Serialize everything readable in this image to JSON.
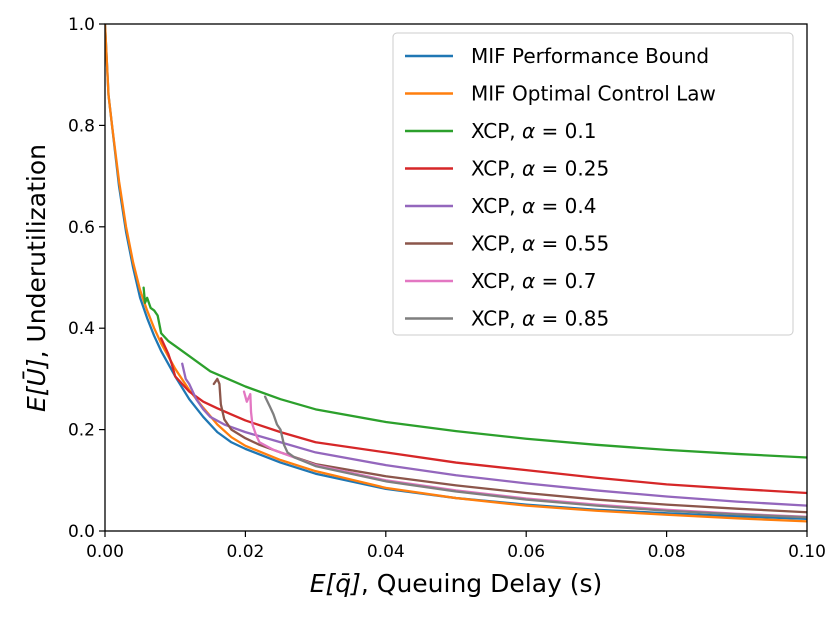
{
  "chart_data": {
    "type": "line",
    "xlabel_italic": "E[q̄]",
    "xlabel_rest": ", Queuing Delay (s)",
    "ylabel_italic": "E[Ū]",
    "ylabel_rest": ", Underutilization",
    "xlim": [
      0.0,
      0.1
    ],
    "ylim": [
      0.0,
      1.0
    ],
    "xticks": [
      0.0,
      0.02,
      0.04,
      0.06,
      0.08,
      0.1
    ],
    "xtick_labels": [
      "0.00",
      "0.02",
      "0.04",
      "0.06",
      "0.08",
      "0.10"
    ],
    "yticks": [
      0.0,
      0.2,
      0.4,
      0.6,
      0.8,
      1.0
    ],
    "ytick_labels": [
      "0.0",
      "0.2",
      "0.4",
      "0.6",
      "0.8",
      "1.0"
    ],
    "grid": false,
    "legend_position": "upper right",
    "series": [
      {
        "name": "MIF Performance Bound",
        "prefix": "MIF Performance Bound",
        "alpha_value": "",
        "color": "#1f77b4",
        "points": [
          [
            0.0,
            1.0
          ],
          [
            0.0005,
            0.86
          ],
          [
            0.001,
            0.8
          ],
          [
            0.002,
            0.68
          ],
          [
            0.003,
            0.59
          ],
          [
            0.004,
            0.52
          ],
          [
            0.005,
            0.46
          ],
          [
            0.006,
            0.42
          ],
          [
            0.007,
            0.385
          ],
          [
            0.008,
            0.355
          ],
          [
            0.009,
            0.33
          ],
          [
            0.01,
            0.305
          ],
          [
            0.012,
            0.26
          ],
          [
            0.014,
            0.225
          ],
          [
            0.016,
            0.195
          ],
          [
            0.018,
            0.175
          ],
          [
            0.02,
            0.162
          ],
          [
            0.025,
            0.135
          ],
          [
            0.03,
            0.113
          ],
          [
            0.04,
            0.083
          ],
          [
            0.05,
            0.065
          ],
          [
            0.06,
            0.052
          ],
          [
            0.07,
            0.042
          ],
          [
            0.08,
            0.035
          ],
          [
            0.09,
            0.029
          ],
          [
            0.1,
            0.024
          ]
        ]
      },
      {
        "name": "MIF Optimal Control Law",
        "prefix": "MIF Optimal Control Law",
        "alpha_value": "",
        "color": "#ff7f0e",
        "points": [
          [
            0.0,
            1.0
          ],
          [
            0.0005,
            0.86
          ],
          [
            0.001,
            0.8
          ],
          [
            0.002,
            0.69
          ],
          [
            0.003,
            0.6
          ],
          [
            0.004,
            0.53
          ],
          [
            0.005,
            0.475
          ],
          [
            0.006,
            0.435
          ],
          [
            0.007,
            0.4
          ],
          [
            0.008,
            0.37
          ],
          [
            0.009,
            0.345
          ],
          [
            0.01,
            0.32
          ],
          [
            0.012,
            0.278
          ],
          [
            0.014,
            0.243
          ],
          [
            0.016,
            0.21
          ],
          [
            0.018,
            0.185
          ],
          [
            0.02,
            0.168
          ],
          [
            0.025,
            0.14
          ],
          [
            0.03,
            0.118
          ],
          [
            0.04,
            0.085
          ],
          [
            0.05,
            0.065
          ],
          [
            0.06,
            0.05
          ],
          [
            0.07,
            0.04
          ],
          [
            0.08,
            0.032
          ],
          [
            0.09,
            0.025
          ],
          [
            0.1,
            0.019
          ]
        ]
      },
      {
        "name": "XCP, α = 0.1",
        "prefix": "XCP, ",
        "alpha_value": " = 0.1",
        "color": "#2ca02c",
        "points": [
          [
            0.0055,
            0.48
          ],
          [
            0.0057,
            0.45
          ],
          [
            0.006,
            0.46
          ],
          [
            0.0065,
            0.44
          ],
          [
            0.007,
            0.435
          ],
          [
            0.0075,
            0.425
          ],
          [
            0.008,
            0.39
          ],
          [
            0.009,
            0.375
          ],
          [
            0.01,
            0.365
          ],
          [
            0.012,
            0.345
          ],
          [
            0.015,
            0.315
          ],
          [
            0.02,
            0.285
          ],
          [
            0.025,
            0.26
          ],
          [
            0.03,
            0.24
          ],
          [
            0.04,
            0.215
          ],
          [
            0.05,
            0.197
          ],
          [
            0.06,
            0.182
          ],
          [
            0.07,
            0.17
          ],
          [
            0.08,
            0.16
          ],
          [
            0.09,
            0.152
          ],
          [
            0.1,
            0.145
          ]
        ]
      },
      {
        "name": "XCP, α = 0.25",
        "prefix": "XCP, ",
        "alpha_value": " = 0.25",
        "color": "#d62728",
        "points": [
          [
            0.008,
            0.38
          ],
          [
            0.009,
            0.35
          ],
          [
            0.0095,
            0.33
          ],
          [
            0.01,
            0.305
          ],
          [
            0.011,
            0.29
          ],
          [
            0.012,
            0.275
          ],
          [
            0.014,
            0.255
          ],
          [
            0.016,
            0.242
          ],
          [
            0.018,
            0.23
          ],
          [
            0.02,
            0.218
          ],
          [
            0.025,
            0.195
          ],
          [
            0.03,
            0.175
          ],
          [
            0.04,
            0.155
          ],
          [
            0.05,
            0.135
          ],
          [
            0.06,
            0.12
          ],
          [
            0.07,
            0.105
          ],
          [
            0.08,
            0.092
          ],
          [
            0.09,
            0.083
          ],
          [
            0.1,
            0.075
          ]
        ]
      },
      {
        "name": "XCP, α = 0.4",
        "prefix": "XCP, ",
        "alpha_value": " = 0.4",
        "color": "#9467bd",
        "points": [
          [
            0.011,
            0.33
          ],
          [
            0.0115,
            0.3
          ],
          [
            0.012,
            0.29
          ],
          [
            0.0125,
            0.275
          ],
          [
            0.013,
            0.26
          ],
          [
            0.014,
            0.24
          ],
          [
            0.015,
            0.225
          ],
          [
            0.017,
            0.21
          ],
          [
            0.02,
            0.195
          ],
          [
            0.025,
            0.175
          ],
          [
            0.03,
            0.155
          ],
          [
            0.04,
            0.13
          ],
          [
            0.05,
            0.11
          ],
          [
            0.06,
            0.094
          ],
          [
            0.07,
            0.08
          ],
          [
            0.08,
            0.068
          ],
          [
            0.09,
            0.058
          ],
          [
            0.1,
            0.05
          ]
        ]
      },
      {
        "name": "XCP, α = 0.55",
        "prefix": "XCP, ",
        "alpha_value": " = 0.55",
        "color": "#8c564b",
        "points": [
          [
            0.0155,
            0.29
          ],
          [
            0.016,
            0.3
          ],
          [
            0.0163,
            0.29
          ],
          [
            0.0165,
            0.25
          ],
          [
            0.017,
            0.22
          ],
          [
            0.018,
            0.2
          ],
          [
            0.02,
            0.183
          ],
          [
            0.022,
            0.17
          ],
          [
            0.025,
            0.155
          ],
          [
            0.03,
            0.132
          ],
          [
            0.04,
            0.108
          ],
          [
            0.05,
            0.09
          ],
          [
            0.06,
            0.075
          ],
          [
            0.07,
            0.062
          ],
          [
            0.08,
            0.052
          ],
          [
            0.09,
            0.044
          ],
          [
            0.1,
            0.037
          ]
        ]
      },
      {
        "name": "XCP, α = 0.7",
        "prefix": "XCP, ",
        "alpha_value": " = 0.7",
        "color": "#e377c2",
        "points": [
          [
            0.0198,
            0.275
          ],
          [
            0.0202,
            0.255
          ],
          [
            0.0207,
            0.27
          ],
          [
            0.0208,
            0.235
          ],
          [
            0.021,
            0.21
          ],
          [
            0.0215,
            0.19
          ],
          [
            0.022,
            0.175
          ],
          [
            0.024,
            0.16
          ],
          [
            0.027,
            0.145
          ],
          [
            0.03,
            0.13
          ],
          [
            0.04,
            0.1
          ],
          [
            0.05,
            0.08
          ],
          [
            0.06,
            0.064
          ],
          [
            0.07,
            0.052
          ],
          [
            0.08,
            0.042
          ],
          [
            0.09,
            0.034
          ],
          [
            0.1,
            0.028
          ]
        ]
      },
      {
        "name": "XCP, α = 0.85",
        "prefix": "XCP, ",
        "alpha_value": " = 0.85",
        "color": "#7f7f7f",
        "points": [
          [
            0.0228,
            0.265
          ],
          [
            0.0235,
            0.245
          ],
          [
            0.024,
            0.23
          ],
          [
            0.0245,
            0.21
          ],
          [
            0.025,
            0.2
          ],
          [
            0.0255,
            0.17
          ],
          [
            0.026,
            0.155
          ],
          [
            0.027,
            0.145
          ],
          [
            0.03,
            0.128
          ],
          [
            0.04,
            0.098
          ],
          [
            0.05,
            0.078
          ],
          [
            0.06,
            0.062
          ],
          [
            0.07,
            0.05
          ],
          [
            0.08,
            0.04
          ],
          [
            0.09,
            0.033
          ],
          [
            0.1,
            0.027
          ]
        ]
      }
    ]
  }
}
